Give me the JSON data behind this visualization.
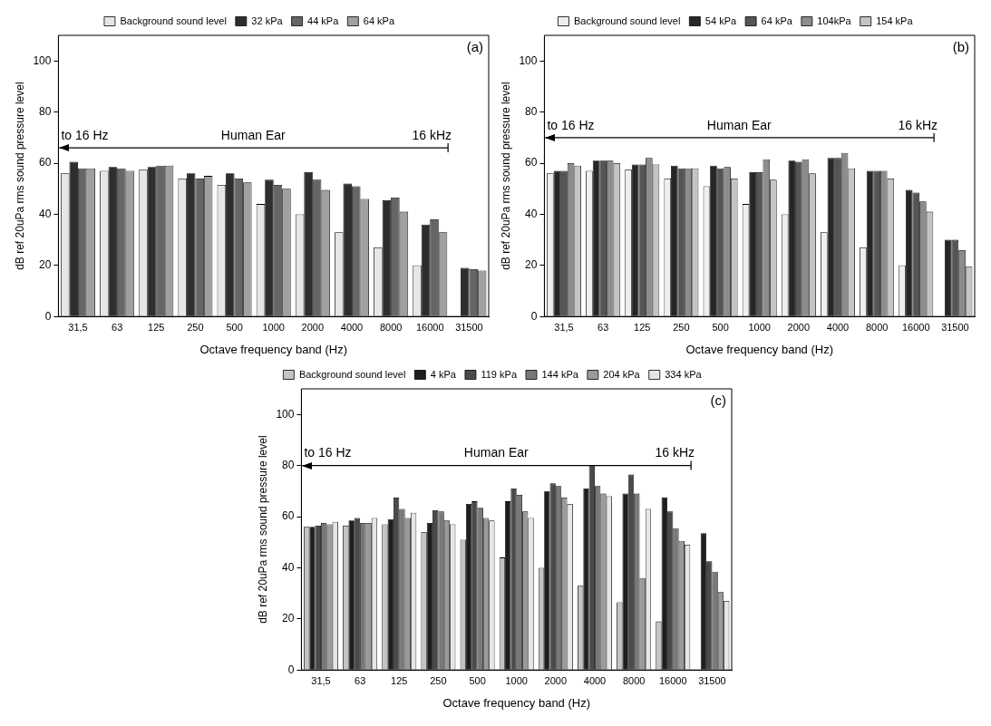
{
  "chart_data": [
    {
      "type": "bar",
      "ylabel": "dB ref 20uPa rms sound pressure level",
      "xlabel": "Octave frequency band (Hz)",
      "categories": [
        "31,5",
        "63",
        "125",
        "250",
        "500",
        "1000",
        "2000",
        "4000",
        "8000",
        "16000",
        "31500"
      ],
      "ylim": [
        0,
        110
      ],
      "yticks": [
        0,
        20,
        40,
        60,
        80,
        100
      ],
      "grid": false,
      "legend": "top",
      "annotations": [
        "(a)",
        "to 16 Hz",
        "16 kHz"
      ],
      "ref_lines": [
        {
          "axis": "y",
          "value": 66,
          "label": "Human Ear"
        }
      ],
      "series": [
        {
          "name": "Background sound level",
          "color": "#e6e6e6",
          "values": [
            56,
            57,
            57.5,
            54,
            51.5,
            44,
            40,
            33,
            27,
            20,
            null
          ]
        },
        {
          "name": "32 kPa",
          "color": "#2e2e2e",
          "values": [
            60.5,
            58.5,
            58.5,
            56,
            56,
            53.5,
            56.5,
            52,
            45.5,
            36,
            19
          ]
        },
        {
          "name": "44 kPa",
          "color": "#666666",
          "values": [
            58,
            58,
            59,
            54,
            54,
            51.5,
            53.5,
            51,
            46.5,
            38,
            18.5
          ]
        },
        {
          "name": "64 kPa",
          "color": "#a0a0a0",
          "values": [
            58,
            57,
            59,
            55,
            52.5,
            50,
            49.5,
            46,
            41,
            33,
            18
          ]
        }
      ]
    },
    {
      "type": "bar",
      "ylabel": "dB ref 20uPa rms sound pressure level",
      "xlabel": "Octave frequency band (Hz)",
      "categories": [
        "31,5",
        "63",
        "125",
        "250",
        "500",
        "1000",
        "2000",
        "4000",
        "8000",
        "16000",
        "31500"
      ],
      "ylim": [
        0,
        110
      ],
      "yticks": [
        0,
        20,
        40,
        60,
        80,
        100
      ],
      "grid": false,
      "legend": "top",
      "annotations": [
        "(b)",
        "to 16 Hz",
        "16 kHz"
      ],
      "ref_lines": [
        {
          "axis": "y",
          "value": 70,
          "label": "Human Ear"
        }
      ],
      "series": [
        {
          "name": "Background sound level",
          "color": "#eeeeee",
          "values": [
            56,
            57,
            57.5,
            54,
            51,
            44,
            40,
            33,
            27,
            20,
            null
          ]
        },
        {
          "name": "54 kPa",
          "color": "#262626",
          "values": [
            57,
            61,
            59.5,
            59,
            59,
            56.5,
            61,
            62,
            57,
            49.5,
            30
          ]
        },
        {
          "name": "64 kPa",
          "color": "#555555",
          "values": [
            57,
            61,
            59.5,
            58,
            58,
            56.5,
            60.5,
            62,
            57,
            48.5,
            30
          ]
        },
        {
          "name": "104kPa",
          "color": "#8c8c8c",
          "values": [
            60,
            61,
            62,
            58,
            58.5,
            61.5,
            61.5,
            64,
            57,
            45,
            26
          ]
        },
        {
          "name": "154 kPa",
          "color": "#c4c4c4",
          "values": [
            59,
            60,
            59.5,
            58,
            54,
            53.5,
            56,
            58,
            54,
            41,
            19.5
          ]
        }
      ]
    },
    {
      "type": "bar",
      "ylabel": "dB ref 20uPa rms sound pressure level",
      "xlabel": "Octave frequency band (Hz)",
      "categories": [
        "31,5",
        "63",
        "125",
        "250",
        "500",
        "1000",
        "2000",
        "4000",
        "8000",
        "16000",
        "31500"
      ],
      "ylim": [
        0,
        110
      ],
      "yticks": [
        0,
        20,
        40,
        60,
        80,
        100
      ],
      "grid": false,
      "legend": "top",
      "annotations": [
        "(c)",
        "to 16 Hz",
        "16 kHz"
      ],
      "ref_lines": [
        {
          "axis": "y",
          "value": 80,
          "label": "Human Ear"
        }
      ],
      "series": [
        {
          "name": "Background sound level",
          "color": "#c4c4c4",
          "values": [
            56,
            56.5,
            57,
            54,
            51,
            44,
            40,
            33,
            26.5,
            19,
            null
          ]
        },
        {
          "name": "4 kPa",
          "color": "#1e1e1e",
          "values": [
            56,
            58.5,
            59,
            57.5,
            65,
            66,
            70,
            71,
            69,
            67.5,
            53.5
          ]
        },
        {
          "name": "119 kPa",
          "color": "#4a4a4a",
          "values": [
            56.5,
            59.5,
            67.5,
            62.5,
            66,
            71,
            73,
            80,
            76.5,
            62,
            42.5
          ]
        },
        {
          "name": "144 kPa",
          "color": "#787878",
          "values": [
            57.5,
            57.5,
            63,
            62,
            63.5,
            68.5,
            72,
            72,
            69,
            55.5,
            38.5
          ]
        },
        {
          "name": "204 kPa",
          "color": "#9a9a9a",
          "values": [
            57,
            57.5,
            59.5,
            58.5,
            59.5,
            62,
            67.5,
            69,
            36,
            50.5,
            30.5
          ]
        },
        {
          "name": "334 kPa",
          "color": "#e6e6e6",
          "values": [
            58,
            59.5,
            61.5,
            57,
            58.5,
            59.5,
            65,
            68,
            63,
            49,
            27
          ]
        }
      ]
    }
  ]
}
